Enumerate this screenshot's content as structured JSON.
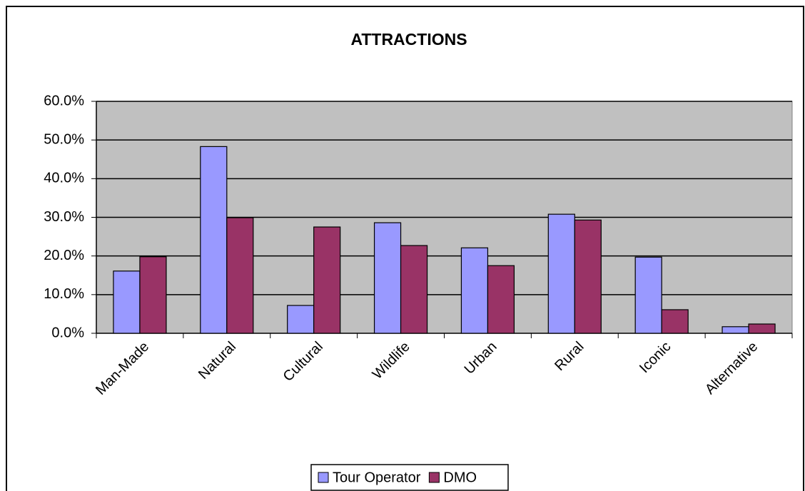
{
  "chart_data": {
    "type": "bar",
    "title": "ATTRACTIONS",
    "categories": [
      "Man-Made",
      "Natural",
      "Cultural",
      "Wildlife",
      "Urban",
      "Rural",
      "Iconic",
      "Alternative"
    ],
    "series": [
      {
        "name": "Tour Operator",
        "color": "#9999ff",
        "values": [
          16.1,
          48.3,
          7.2,
          28.6,
          22.1,
          30.8,
          19.7,
          1.7
        ]
      },
      {
        "name": "DMO",
        "color": "#993366",
        "values": [
          19.8,
          29.9,
          27.5,
          22.7,
          17.5,
          29.3,
          6.1,
          2.4
        ]
      }
    ],
    "ylim": [
      0,
      60
    ],
    "yticks": [
      {
        "value": 0,
        "label": "0.0%"
      },
      {
        "value": 10,
        "label": "10.0%"
      },
      {
        "value": 20,
        "label": "20.0%"
      },
      {
        "value": 30,
        "label": "30.0%"
      },
      {
        "value": 40,
        "label": "40.0%"
      },
      {
        "value": 50,
        "label": "50.0%"
      },
      {
        "value": 60,
        "label": "60.0%"
      }
    ],
    "grid": true,
    "plot_background": "#c0c0c0",
    "legend": "bottom"
  }
}
